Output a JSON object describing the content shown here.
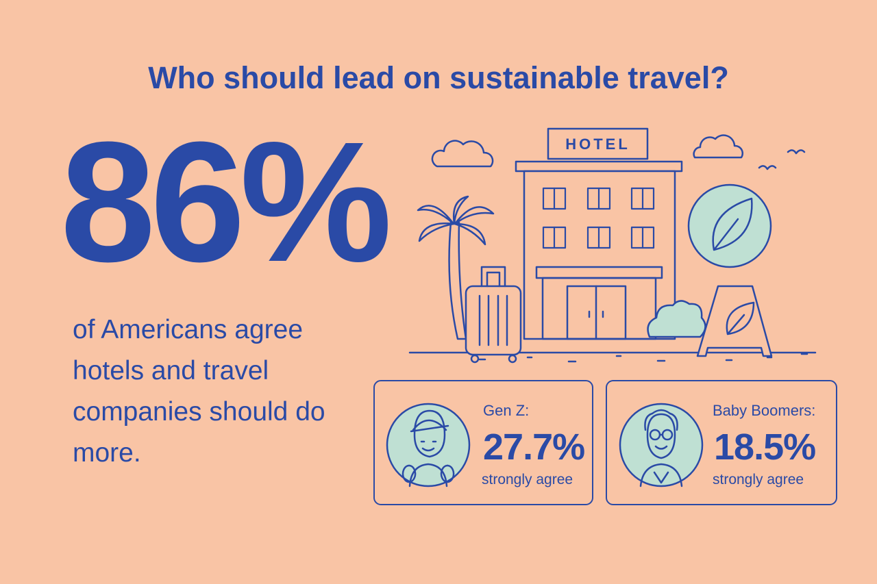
{
  "header": {
    "title": "Who should lead on sustainable travel?"
  },
  "stat": {
    "value": "86%",
    "description": "of Americans agree hotels and travel companies should do more."
  },
  "illustration": {
    "sign": "HOTEL"
  },
  "cards": [
    {
      "label": "Gen Z:",
      "value": "27.7%",
      "note": "strongly agree"
    },
    {
      "label": "Baby Boomers:",
      "value": "18.5%",
      "note": "strongly agree"
    }
  ]
}
